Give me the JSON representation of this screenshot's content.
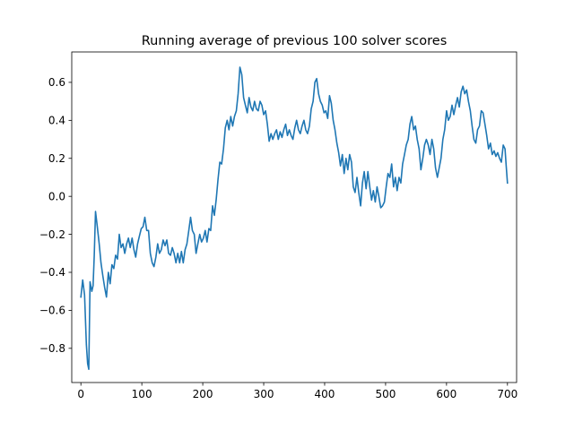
{
  "chart_data": {
    "type": "line",
    "title": "Running average of previous 100 solver scores",
    "xlabel": "",
    "ylabel": "",
    "xlim": [
      -15,
      715
    ],
    "ylim": [
      -0.98,
      0.76
    ],
    "grid": false,
    "x_ticks": [
      0,
      100,
      200,
      300,
      400,
      500,
      600,
      700
    ],
    "x_tick_labels": [
      "0",
      "100",
      "200",
      "300",
      "400",
      "500",
      "600",
      "700"
    ],
    "y_ticks": [
      -0.8,
      -0.6,
      -0.4,
      -0.2,
      0.0,
      0.2,
      0.4,
      0.6
    ],
    "y_tick_labels": [
      "−0.8",
      "−0.6",
      "−0.4",
      "−0.2",
      "0.0",
      "0.2",
      "0.4",
      "0.6"
    ],
    "series": [
      {
        "name": "running average",
        "color": "#1f77b4",
        "points": [
          [
            0,
            -0.53
          ],
          [
            3,
            -0.44
          ],
          [
            6,
            -0.52
          ],
          [
            9,
            -0.78
          ],
          [
            11,
            -0.88
          ],
          [
            13,
            -0.91
          ],
          [
            15,
            -0.45
          ],
          [
            18,
            -0.5
          ],
          [
            20,
            -0.47
          ],
          [
            22,
            -0.31
          ],
          [
            24,
            -0.08
          ],
          [
            27,
            -0.16
          ],
          [
            30,
            -0.25
          ],
          [
            33,
            -0.35
          ],
          [
            36,
            -0.42
          ],
          [
            39,
            -0.48
          ],
          [
            42,
            -0.53
          ],
          [
            45,
            -0.4
          ],
          [
            48,
            -0.46
          ],
          [
            51,
            -0.36
          ],
          [
            54,
            -0.38
          ],
          [
            57,
            -0.31
          ],
          [
            60,
            -0.33
          ],
          [
            63,
            -0.2
          ],
          [
            66,
            -0.27
          ],
          [
            69,
            -0.25
          ],
          [
            72,
            -0.3
          ],
          [
            75,
            -0.25
          ],
          [
            78,
            -0.22
          ],
          [
            81,
            -0.27
          ],
          [
            84,
            -0.22
          ],
          [
            87,
            -0.28
          ],
          [
            90,
            -0.32
          ],
          [
            93,
            -0.25
          ],
          [
            96,
            -0.21
          ],
          [
            99,
            -0.17
          ],
          [
            102,
            -0.16
          ],
          [
            105,
            -0.11
          ],
          [
            108,
            -0.18
          ],
          [
            111,
            -0.18
          ],
          [
            114,
            -0.3
          ],
          [
            117,
            -0.35
          ],
          [
            120,
            -0.37
          ],
          [
            123,
            -0.32
          ],
          [
            126,
            -0.25
          ],
          [
            129,
            -0.3
          ],
          [
            132,
            -0.28
          ],
          [
            135,
            -0.23
          ],
          [
            138,
            -0.26
          ],
          [
            141,
            -0.23
          ],
          [
            144,
            -0.3
          ],
          [
            147,
            -0.31
          ],
          [
            150,
            -0.27
          ],
          [
            153,
            -0.3
          ],
          [
            156,
            -0.35
          ],
          [
            159,
            -0.3
          ],
          [
            162,
            -0.35
          ],
          [
            165,
            -0.29
          ],
          [
            168,
            -0.35
          ],
          [
            171,
            -0.28
          ],
          [
            174,
            -0.25
          ],
          [
            177,
            -0.18
          ],
          [
            180,
            -0.11
          ],
          [
            183,
            -0.18
          ],
          [
            186,
            -0.2
          ],
          [
            189,
            -0.3
          ],
          [
            192,
            -0.25
          ],
          [
            195,
            -0.2
          ],
          [
            198,
            -0.24
          ],
          [
            201,
            -0.22
          ],
          [
            204,
            -0.18
          ],
          [
            207,
            -0.24
          ],
          [
            210,
            -0.17
          ],
          [
            213,
            -0.18
          ],
          [
            216,
            -0.05
          ],
          [
            219,
            -0.1
          ],
          [
            222,
            -0.02
          ],
          [
            225,
            0.09
          ],
          [
            228,
            0.18
          ],
          [
            231,
            0.17
          ],
          [
            234,
            0.25
          ],
          [
            237,
            0.36
          ],
          [
            240,
            0.4
          ],
          [
            243,
            0.35
          ],
          [
            246,
            0.42
          ],
          [
            249,
            0.37
          ],
          [
            252,
            0.42
          ],
          [
            255,
            0.45
          ],
          [
            258,
            0.54
          ],
          [
            261,
            0.68
          ],
          [
            264,
            0.64
          ],
          [
            267,
            0.52
          ],
          [
            270,
            0.48
          ],
          [
            273,
            0.44
          ],
          [
            276,
            0.52
          ],
          [
            279,
            0.47
          ],
          [
            282,
            0.45
          ],
          [
            285,
            0.5
          ],
          [
            288,
            0.46
          ],
          [
            291,
            0.45
          ],
          [
            294,
            0.5
          ],
          [
            297,
            0.48
          ],
          [
            300,
            0.43
          ],
          [
            303,
            0.45
          ],
          [
            306,
            0.38
          ],
          [
            309,
            0.29
          ],
          [
            312,
            0.33
          ],
          [
            315,
            0.3
          ],
          [
            318,
            0.33
          ],
          [
            321,
            0.35
          ],
          [
            324,
            0.3
          ],
          [
            327,
            0.34
          ],
          [
            330,
            0.31
          ],
          [
            333,
            0.35
          ],
          [
            336,
            0.38
          ],
          [
            339,
            0.32
          ],
          [
            342,
            0.35
          ],
          [
            345,
            0.32
          ],
          [
            348,
            0.3
          ],
          [
            351,
            0.36
          ],
          [
            354,
            0.4
          ],
          [
            357,
            0.35
          ],
          [
            360,
            0.33
          ],
          [
            363,
            0.37
          ],
          [
            366,
            0.4
          ],
          [
            369,
            0.35
          ],
          [
            372,
            0.33
          ],
          [
            375,
            0.37
          ],
          [
            378,
            0.46
          ],
          [
            381,
            0.5
          ],
          [
            384,
            0.6
          ],
          [
            387,
            0.62
          ],
          [
            390,
            0.54
          ],
          [
            393,
            0.5
          ],
          [
            396,
            0.48
          ],
          [
            399,
            0.44
          ],
          [
            402,
            0.45
          ],
          [
            405,
            0.41
          ],
          [
            408,
            0.53
          ],
          [
            411,
            0.49
          ],
          [
            414,
            0.4
          ],
          [
            417,
            0.35
          ],
          [
            420,
            0.28
          ],
          [
            423,
            0.23
          ],
          [
            426,
            0.16
          ],
          [
            429,
            0.22
          ],
          [
            432,
            0.12
          ],
          [
            435,
            0.2
          ],
          [
            438,
            0.14
          ],
          [
            441,
            0.22
          ],
          [
            444,
            0.18
          ],
          [
            447,
            0.05
          ],
          [
            450,
            0.02
          ],
          [
            453,
            0.1
          ],
          [
            456,
            0.02
          ],
          [
            459,
            -0.05
          ],
          [
            462,
            0.07
          ],
          [
            465,
            0.13
          ],
          [
            468,
            0.04
          ],
          [
            471,
            0.13
          ],
          [
            474,
            0.05
          ],
          [
            477,
            -0.02
          ],
          [
            480,
            0.03
          ],
          [
            483,
            -0.03
          ],
          [
            486,
            0.05
          ],
          [
            489,
            0.0
          ],
          [
            492,
            -0.06
          ],
          [
            495,
            -0.05
          ],
          [
            498,
            -0.03
          ],
          [
            501,
            0.05
          ],
          [
            504,
            0.12
          ],
          [
            507,
            0.1
          ],
          [
            510,
            0.17
          ],
          [
            513,
            0.05
          ],
          [
            516,
            0.1
          ],
          [
            519,
            0.03
          ],
          [
            522,
            0.1
          ],
          [
            525,
            0.07
          ],
          [
            528,
            0.17
          ],
          [
            531,
            0.22
          ],
          [
            534,
            0.27
          ],
          [
            537,
            0.3
          ],
          [
            540,
            0.38
          ],
          [
            543,
            0.42
          ],
          [
            546,
            0.35
          ],
          [
            549,
            0.37
          ],
          [
            552,
            0.3
          ],
          [
            555,
            0.25
          ],
          [
            558,
            0.14
          ],
          [
            561,
            0.2
          ],
          [
            564,
            0.27
          ],
          [
            567,
            0.3
          ],
          [
            570,
            0.27
          ],
          [
            573,
            0.22
          ],
          [
            576,
            0.3
          ],
          [
            579,
            0.25
          ],
          [
            582,
            0.15
          ],
          [
            585,
            0.1
          ],
          [
            588,
            0.15
          ],
          [
            591,
            0.2
          ],
          [
            594,
            0.3
          ],
          [
            597,
            0.35
          ],
          [
            600,
            0.45
          ],
          [
            603,
            0.4
          ],
          [
            606,
            0.42
          ],
          [
            609,
            0.48
          ],
          [
            612,
            0.43
          ],
          [
            615,
            0.48
          ],
          [
            618,
            0.52
          ],
          [
            621,
            0.47
          ],
          [
            624,
            0.55
          ],
          [
            627,
            0.58
          ],
          [
            630,
            0.54
          ],
          [
            633,
            0.56
          ],
          [
            636,
            0.5
          ],
          [
            639,
            0.45
          ],
          [
            642,
            0.37
          ],
          [
            645,
            0.3
          ],
          [
            648,
            0.28
          ],
          [
            651,
            0.35
          ],
          [
            654,
            0.37
          ],
          [
            657,
            0.45
          ],
          [
            660,
            0.44
          ],
          [
            663,
            0.38
          ],
          [
            666,
            0.32
          ],
          [
            669,
            0.25
          ],
          [
            672,
            0.28
          ],
          [
            675,
            0.22
          ],
          [
            678,
            0.24
          ],
          [
            681,
            0.21
          ],
          [
            684,
            0.23
          ],
          [
            687,
            0.2
          ],
          [
            690,
            0.18
          ],
          [
            693,
            0.27
          ],
          [
            696,
            0.25
          ],
          [
            698,
            0.16
          ],
          [
            700,
            0.07
          ]
        ]
      }
    ]
  }
}
